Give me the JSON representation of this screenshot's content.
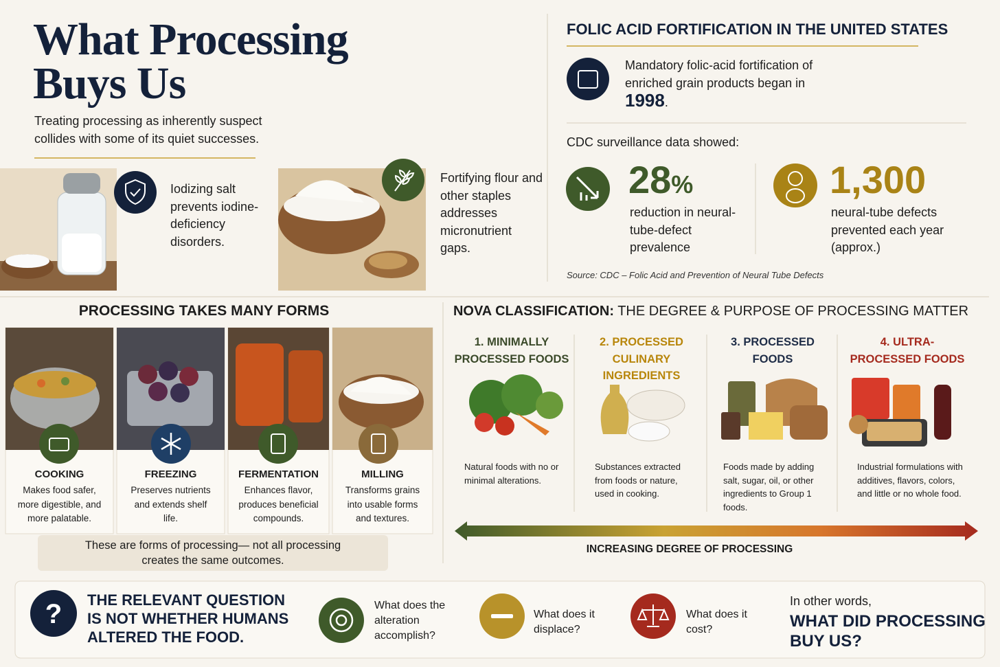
{
  "header": {
    "title": "What Processing Buys Us",
    "subtitle": "Treating processing as inherently suspect collides with some of its quiet successes."
  },
  "successes": [
    {
      "text": "Iodizing salt prevents iodine-deficiency disorders."
    },
    {
      "text": "Fortifying flour and other staples addresses micronutrient gaps."
    }
  ],
  "folic": {
    "title": "FOLIC ACID FORTIFICATION IN THE UNITED STATES",
    "intro": "Mandatory folic-acid fortification of enriched grain products began in",
    "year": "1998",
    "year_end": ".",
    "surveillance": "CDC surveillance data showed:",
    "stats": [
      {
        "value": "28",
        "unit": "%",
        "text": "reduction in neural-tube-defect prevalence"
      },
      {
        "value": "1,300",
        "text": "neural-tube defects prevented each year (approx.)"
      }
    ],
    "source": "Source: CDC – Folic Acid and Prevention of Neural Tube Defects"
  },
  "forms": {
    "title": "PROCESSING TAKES MANY FORMS",
    "items": [
      {
        "name": "COOKING",
        "text": "Makes food safer, more digestible, and more palatable."
      },
      {
        "name": "FREEZING",
        "text": "Preserves nutrients and extends shelf life."
      },
      {
        "name": "FERMENTATION",
        "text": "Enhances flavor, produces beneficial compounds."
      },
      {
        "name": "MILLING",
        "text": "Transforms grains into usable forms and textures."
      }
    ],
    "note": "These are forms of processing— not all processing creates the same outcomes."
  },
  "nova": {
    "title_bold": "NOVA CLASSIFICATION:",
    "title": "THE DEGREE & PURPOSE OF PROCESSING MATTER",
    "groups": [
      {
        "name": "1. MINIMALLY PROCESSED FOODS",
        "text": "Natural foods with no or minimal alterations.",
        "color": "#3b4a2a"
      },
      {
        "name": "2. PROCESSED CULINARY INGREDIENTS",
        "text": "Substances extracted from foods or nature, used in cooking.",
        "color": "#b8860b"
      },
      {
        "name": "3. PROCESSED FOODS",
        "text": "Foods made by adding salt, sugar, oil, or other ingredients to Group 1 foods.",
        "color": "#1f2d47"
      },
      {
        "name": "4. ULTRA-PROCESSED FOODS",
        "text": "Industrial formulations with additives, flavors, colors, and little or no whole food.",
        "color": "#a52a1e"
      }
    ],
    "axis": "INCREASING DEGREE OF PROCESSING"
  },
  "question": {
    "text": "THE RELEVANT QUESTION IS NOT WHETHER HUMANS ALTERED THE FOOD.",
    "items": [
      "What does the alteration accomplish?",
      "What does it displace?",
      "What does it cost?"
    ],
    "closing_intro": "In other words,",
    "closing": "WHAT DID PROCESSING BUY US?"
  }
}
